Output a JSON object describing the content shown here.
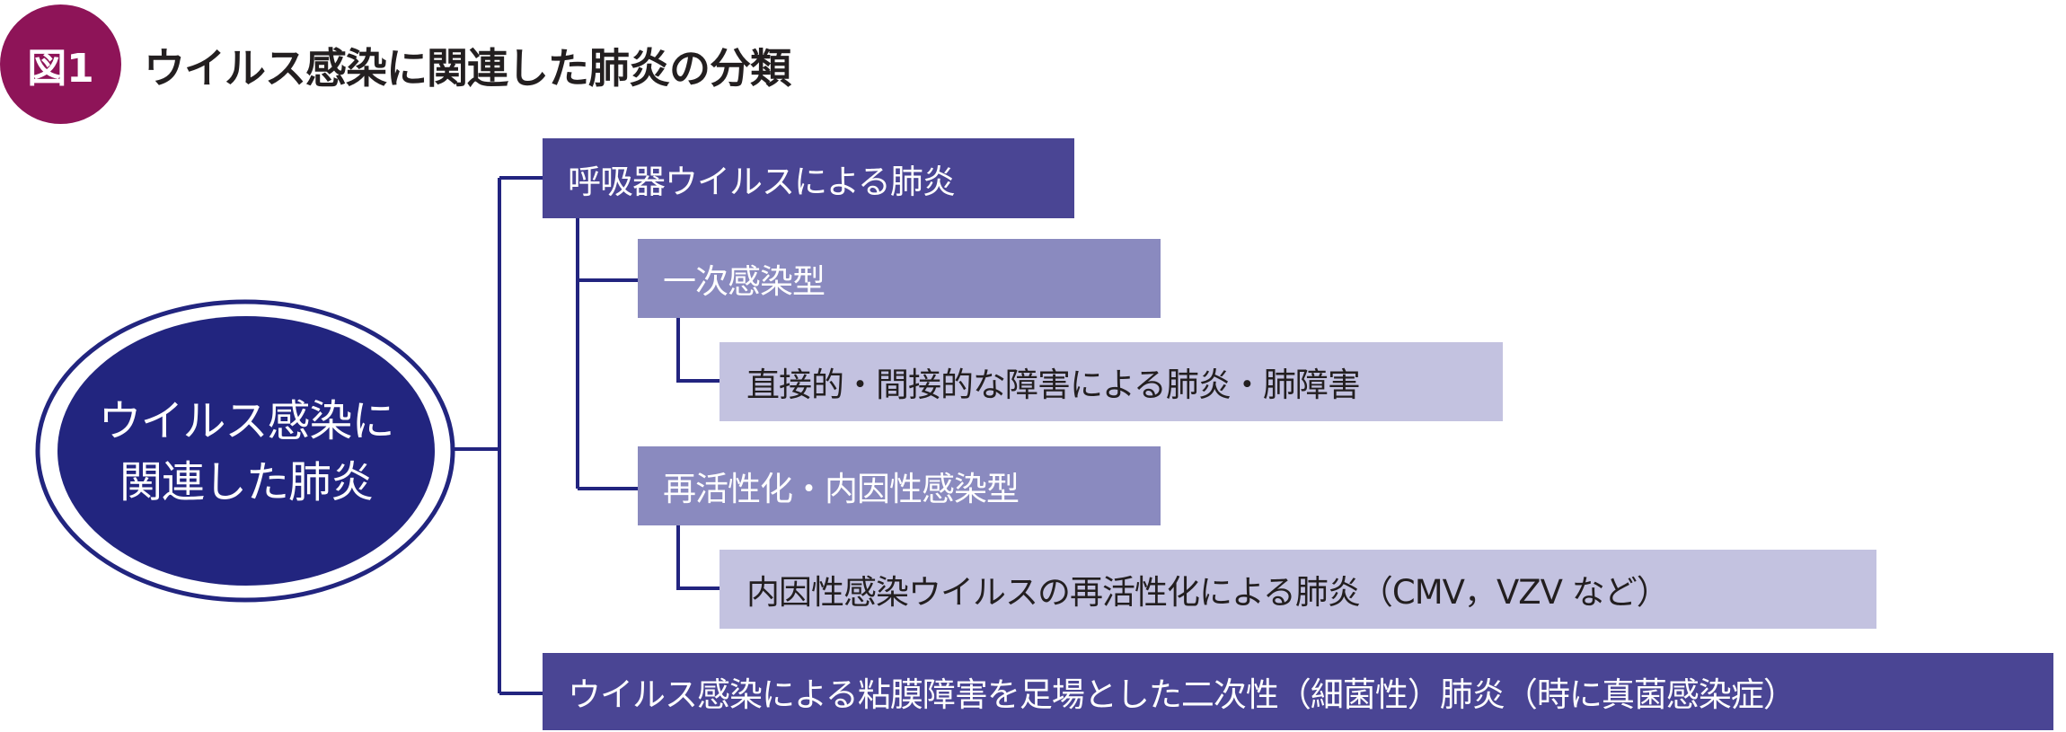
{
  "figure": {
    "badge": "図1",
    "title": "ウイルス感染に関連した肺炎の分類"
  },
  "colors": {
    "badge": "#8e1458",
    "center": "#22257f",
    "level1": "#4a4594",
    "level2": "#8a8abf",
    "level3": "#c3c2e0",
    "connector": "#22247f"
  },
  "center": {
    "line1": "ウイルス感染に",
    "line2": "関連した肺炎"
  },
  "nodes": {
    "respiratory": "呼吸器ウイルスによる肺炎",
    "primary": "一次感染型",
    "primary_detail": "直接的・間接的な障害による肺炎・肺障害",
    "reactivation": "再活性化・内因性感染型",
    "reactivation_detail": "内因性感染ウイルスの再活性化による肺炎（CMV，VZV など）",
    "secondary": "ウイルス感染による粘膜障害を足場とした二次性（細菌性）肺炎（時に真菌感染症）"
  }
}
